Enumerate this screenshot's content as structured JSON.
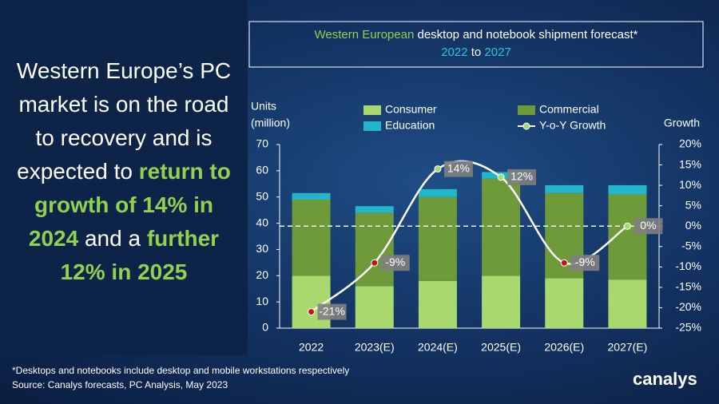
{
  "headline": [
    {
      "text": "Western Europe’s PC market is on the road to recovery and is expected to",
      "highlight": false
    },
    {
      "text": "return to growth of 14% in 2024",
      "highlight": true
    },
    {
      "text": "and a",
      "highlight": false
    },
    {
      "text": "further 12% in 2025",
      "highlight": true
    }
  ],
  "chart_data": {
    "type": "stacked-bar-line",
    "title": [
      [
        {
          "text": "Western European",
          "color": "#92d050"
        },
        {
          "text": "desktop and notebook shipment forecast*",
          "color": "#ffffff"
        }
      ],
      [
        {
          "text": "2022",
          "color": "#2ac6e0"
        },
        {
          "text": "to",
          "color": "#ffffff"
        },
        {
          "text": "2027",
          "color": "#2ac6e0"
        }
      ]
    ],
    "y_label": [
      "Units",
      "(million)"
    ],
    "y2_label": "Growth",
    "categories": [
      "2022",
      "2023(E)",
      "2024(E)",
      "2025(E)",
      "2026(E)",
      "2027(E)"
    ],
    "series": [
      {
        "name": "Consumer",
        "color": "#a9d86e",
        "values": [
          20,
          16,
          18,
          20,
          19,
          18.5
        ]
      },
      {
        "name": "Commercial",
        "color": "#6e9a3a",
        "values": [
          29,
          28,
          32,
          37,
          32.5,
          32.5
        ]
      },
      {
        "name": "Education",
        "color": "#22b5cc",
        "values": [
          2.5,
          2.5,
          3,
          2.5,
          3,
          3.5
        ]
      },
      {
        "name": "Y-o-Y Growth",
        "color": "#ffffff",
        "axis": "y2",
        "values": [
          -21,
          -9,
          14,
          12,
          -9,
          0
        ],
        "value_labels": [
          "-21%",
          "-9%",
          "14%",
          "12%",
          "-9%",
          "0%"
        ],
        "point_colors": [
          "#c0141c",
          "#c0141c",
          "#a9d86e",
          "#a9d86e",
          "#c0141c",
          "#a9d86e"
        ]
      }
    ],
    "ylim": [
      0,
      70
    ],
    "yticks": [
      0,
      10,
      20,
      30,
      40,
      50,
      60,
      70
    ],
    "y2lim": [
      -25,
      20
    ],
    "y2ticks": [
      {
        "value": -25,
        "label": "-25%"
      },
      {
        "value": -20,
        "label": "-20%"
      },
      {
        "value": -15,
        "label": "-15%"
      },
      {
        "value": -10,
        "label": "-10%"
      },
      {
        "value": -5,
        "label": "-5%"
      },
      {
        "value": 0,
        "label": "0%"
      },
      {
        "value": 5,
        "label": "5%"
      },
      {
        "value": 10,
        "label": "10%"
      },
      {
        "value": 15,
        "label": "15%"
      },
      {
        "value": 20,
        "label": "20%"
      }
    ],
    "zero_line": true
  },
  "footnotes": [
    "*Desktops and notebooks  include desktop and mobile workstations respectively",
    "Source:  Canalys forecasts, PC Analysis, May 2023"
  ],
  "logo": "canalys"
}
